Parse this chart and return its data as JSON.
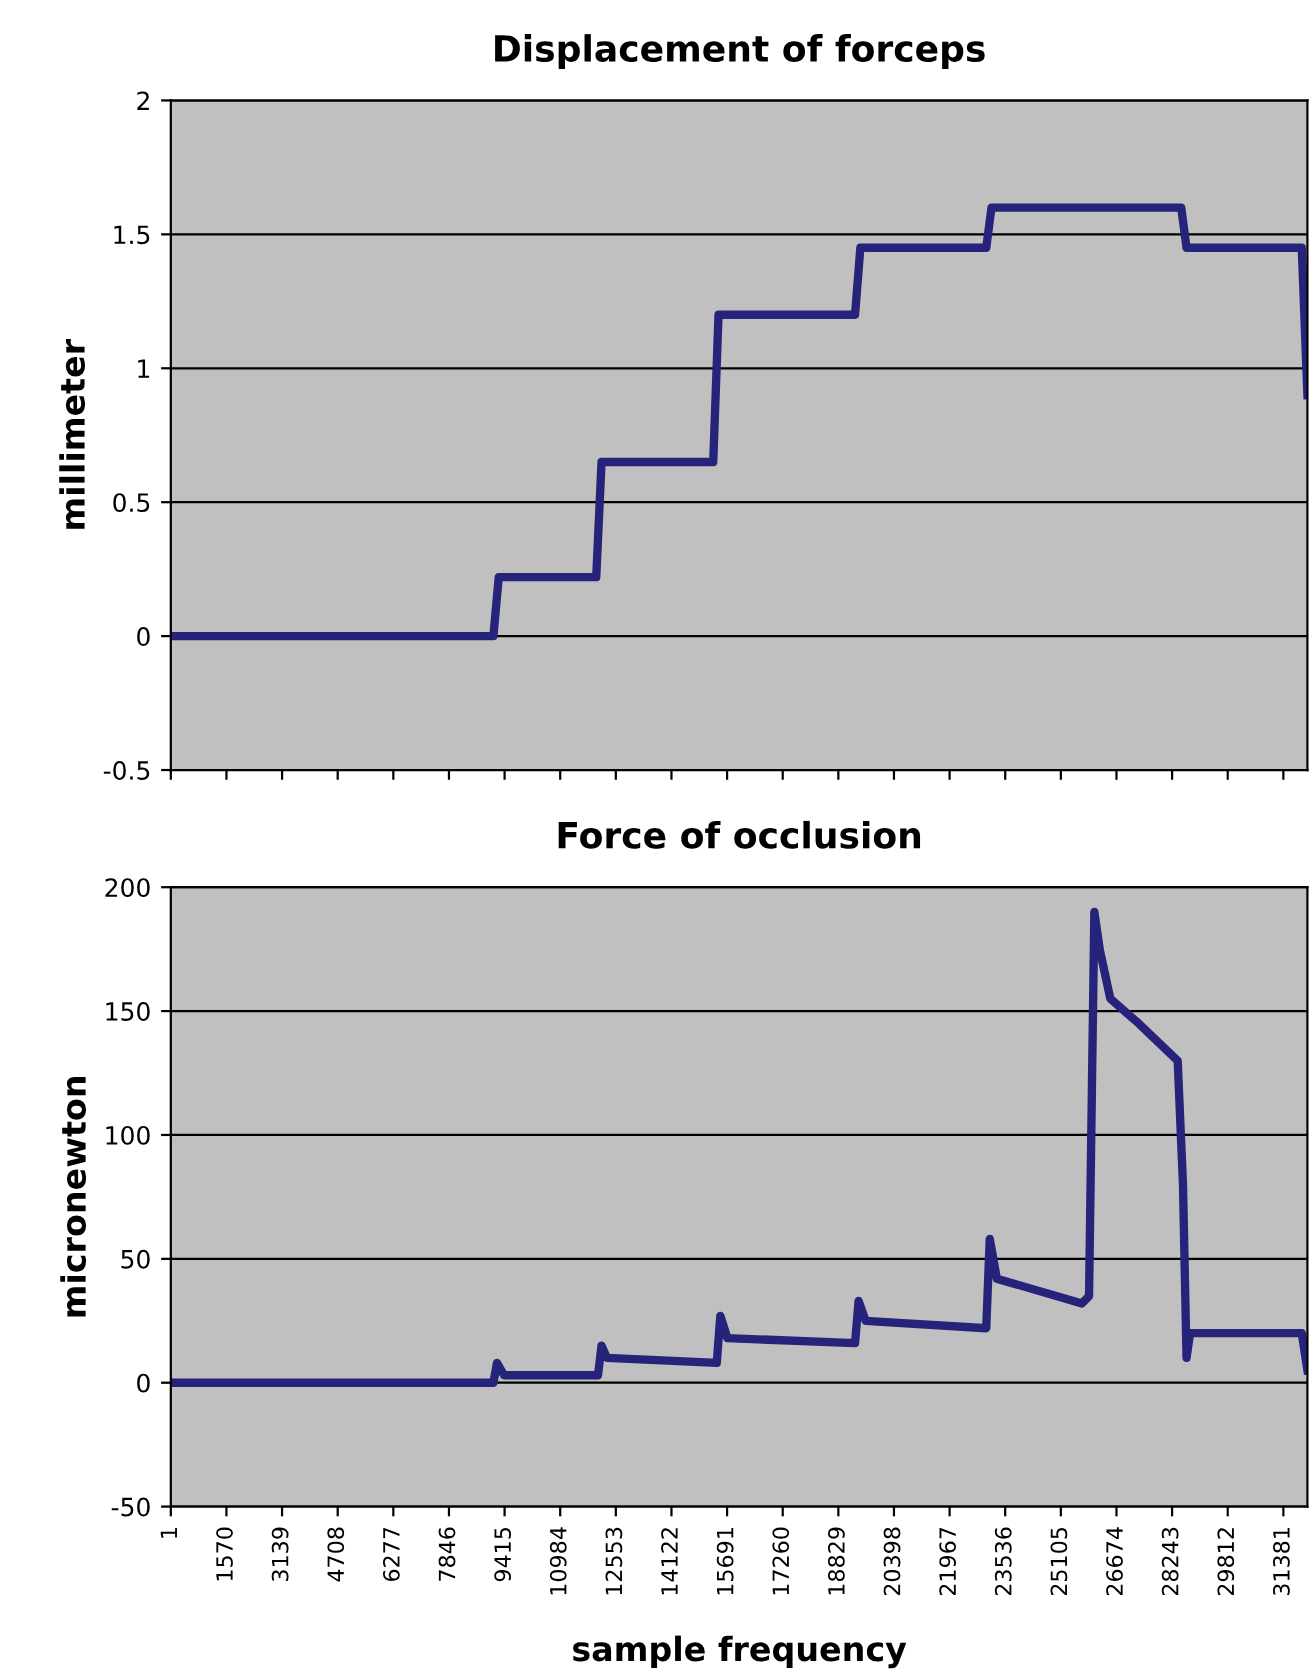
{
  "chart_data": [
    {
      "type": "line",
      "title": "Displacement of forceps",
      "ylabel": "millimeter",
      "xlim": [
        1,
        32060
      ],
      "xticks": [
        1,
        1570,
        3139,
        4708,
        6277,
        7846,
        9415,
        10984,
        12553,
        14122,
        15691,
        17260,
        18829,
        20398,
        21967,
        23536,
        25105,
        26674,
        28243,
        29812,
        31381
      ],
      "ylim": [
        -0.5,
        2
      ],
      "yticks": [
        -0.5,
        0,
        0.5,
        1,
        1.5,
        2
      ],
      "grid": "y",
      "tick_labels": "y",
      "line_style": "solid",
      "series": [
        {
          "color": "#25237a",
          "x": [
            1,
            4500,
            9100,
            9250,
            12000,
            12150,
            15300,
            15450,
            19300,
            19450,
            23000,
            23150,
            28500,
            28650,
            31900,
            32060
          ],
          "values": [
            0,
            0,
            0,
            0.22,
            0.22,
            0.65,
            0.65,
            1.2,
            1.2,
            1.45,
            1.45,
            1.6,
            1.6,
            1.45,
            1.45,
            0.9
          ]
        }
      ]
    },
    {
      "type": "line",
      "title": "Force of occlusion",
      "ylabel": "micronewton",
      "xlabel": "sample frequency",
      "xlim": [
        1,
        32060
      ],
      "xticks": [
        1,
        1570,
        3139,
        4708,
        6277,
        7846,
        9415,
        10984,
        12553,
        14122,
        15691,
        17260,
        18829,
        20398,
        21967,
        23536,
        25105,
        26674,
        28243,
        29812,
        31381
      ],
      "ylim": [
        -50,
        200
      ],
      "yticks": [
        -50,
        0,
        50,
        100,
        150,
        200
      ],
      "grid": "y",
      "line_style": "solid",
      "series": [
        {
          "color": "#25237a",
          "x": [
            1,
            9100,
            9200,
            9400,
            12050,
            12150,
            12300,
            15400,
            15500,
            15700,
            19300,
            19400,
            19600,
            23000,
            23100,
            23300,
            25700,
            25900,
            26050,
            26200,
            26500,
            27300,
            28400,
            28550,
            28650,
            28750,
            31900,
            32060
          ],
          "values": [
            0,
            0,
            8,
            3,
            3,
            15,
            10,
            8,
            27,
            18,
            16,
            33,
            25,
            22,
            58,
            42,
            32,
            35,
            190,
            175,
            155,
            145,
            130,
            80,
            10,
            20,
            20,
            5
          ]
        }
      ]
    }
  ]
}
